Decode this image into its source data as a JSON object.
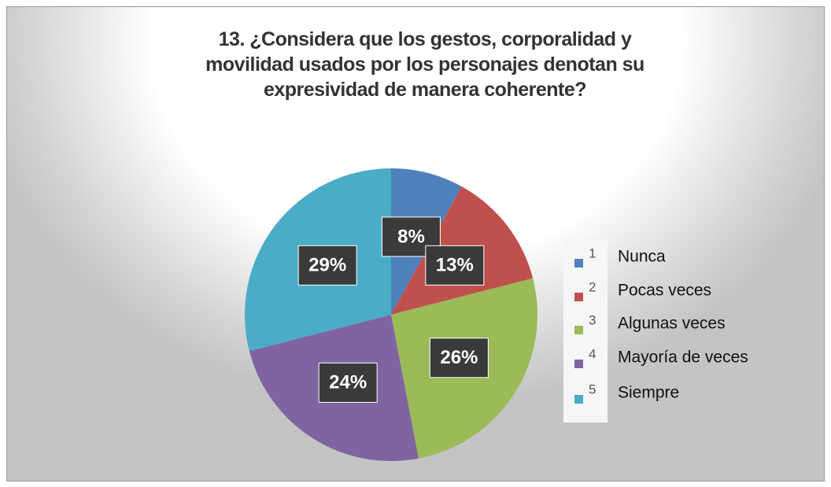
{
  "chart_data": {
    "type": "pie",
    "title": "13. ¿Considera que los gestos, corporalidad y movilidad usados por los personajes denotan su expresividad de manera coherente?",
    "categories": [
      "1",
      "2",
      "3",
      "4",
      "5"
    ],
    "legend_labels": [
      "Nunca",
      "Pocas veces",
      "Algunas veces",
      "Mayoría de veces",
      "Siempre"
    ],
    "values": [
      8,
      13,
      26,
      24,
      29
    ],
    "value_labels": [
      "8%",
      "13%",
      "26%",
      "24%",
      "29%"
    ],
    "colors": [
      "#4f81bd",
      "#c0504d",
      "#9bbb59",
      "#8064a2",
      "#4bacc6"
    ],
    "legend": "right"
  }
}
